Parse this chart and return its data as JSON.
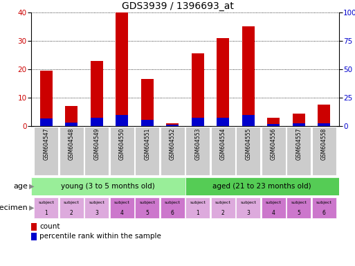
{
  "title": "GDS3939 / 1396693_at",
  "gsm_labels": [
    "GSM604547",
    "GSM604548",
    "GSM604549",
    "GSM604550",
    "GSM604551",
    "GSM604552",
    "GSM604553",
    "GSM604554",
    "GSM604555",
    "GSM604556",
    "GSM604557",
    "GSM604558"
  ],
  "count_values": [
    19.5,
    7.0,
    23.0,
    40.0,
    16.5,
    1.0,
    25.5,
    31.0,
    35.0,
    3.0,
    4.5,
    7.5
  ],
  "percentile_values": [
    6.5,
    3.0,
    7.5,
    10.0,
    5.5,
    1.0,
    7.5,
    7.5,
    9.5,
    2.0,
    2.5,
    2.5
  ],
  "ylim": [
    0,
    40
  ],
  "y2lim": [
    0,
    100
  ],
  "yticks": [
    0,
    10,
    20,
    30,
    40
  ],
  "y2ticks": [
    0,
    25,
    50,
    75,
    100
  ],
  "y2ticklabels": [
    "0",
    "25",
    "50",
    "75",
    "100%"
  ],
  "bar_color": "#cc0000",
  "percentile_color": "#0000cc",
  "bar_width": 0.5,
  "age_young_label": "young (3 to 5 months old)",
  "age_aged_label": "aged (21 to 23 months old)",
  "age_young_color": "#99ee99",
  "age_aged_color": "#55cc55",
  "spec_colors": [
    "#ddaadd",
    "#ddaadd",
    "#ddaadd",
    "#cc77cc",
    "#cc77cc",
    "#cc77cc",
    "#ddaadd",
    "#ddaadd",
    "#ddaadd",
    "#cc77cc",
    "#cc77cc",
    "#cc77cc"
  ],
  "tick_label_color": "#cc0000",
  "right_tick_color": "#0000cc",
  "grid_color": "#000000",
  "xticklabel_bg": "#cccccc",
  "fig_bg": "#ffffff",
  "arrow_color": "#888888"
}
